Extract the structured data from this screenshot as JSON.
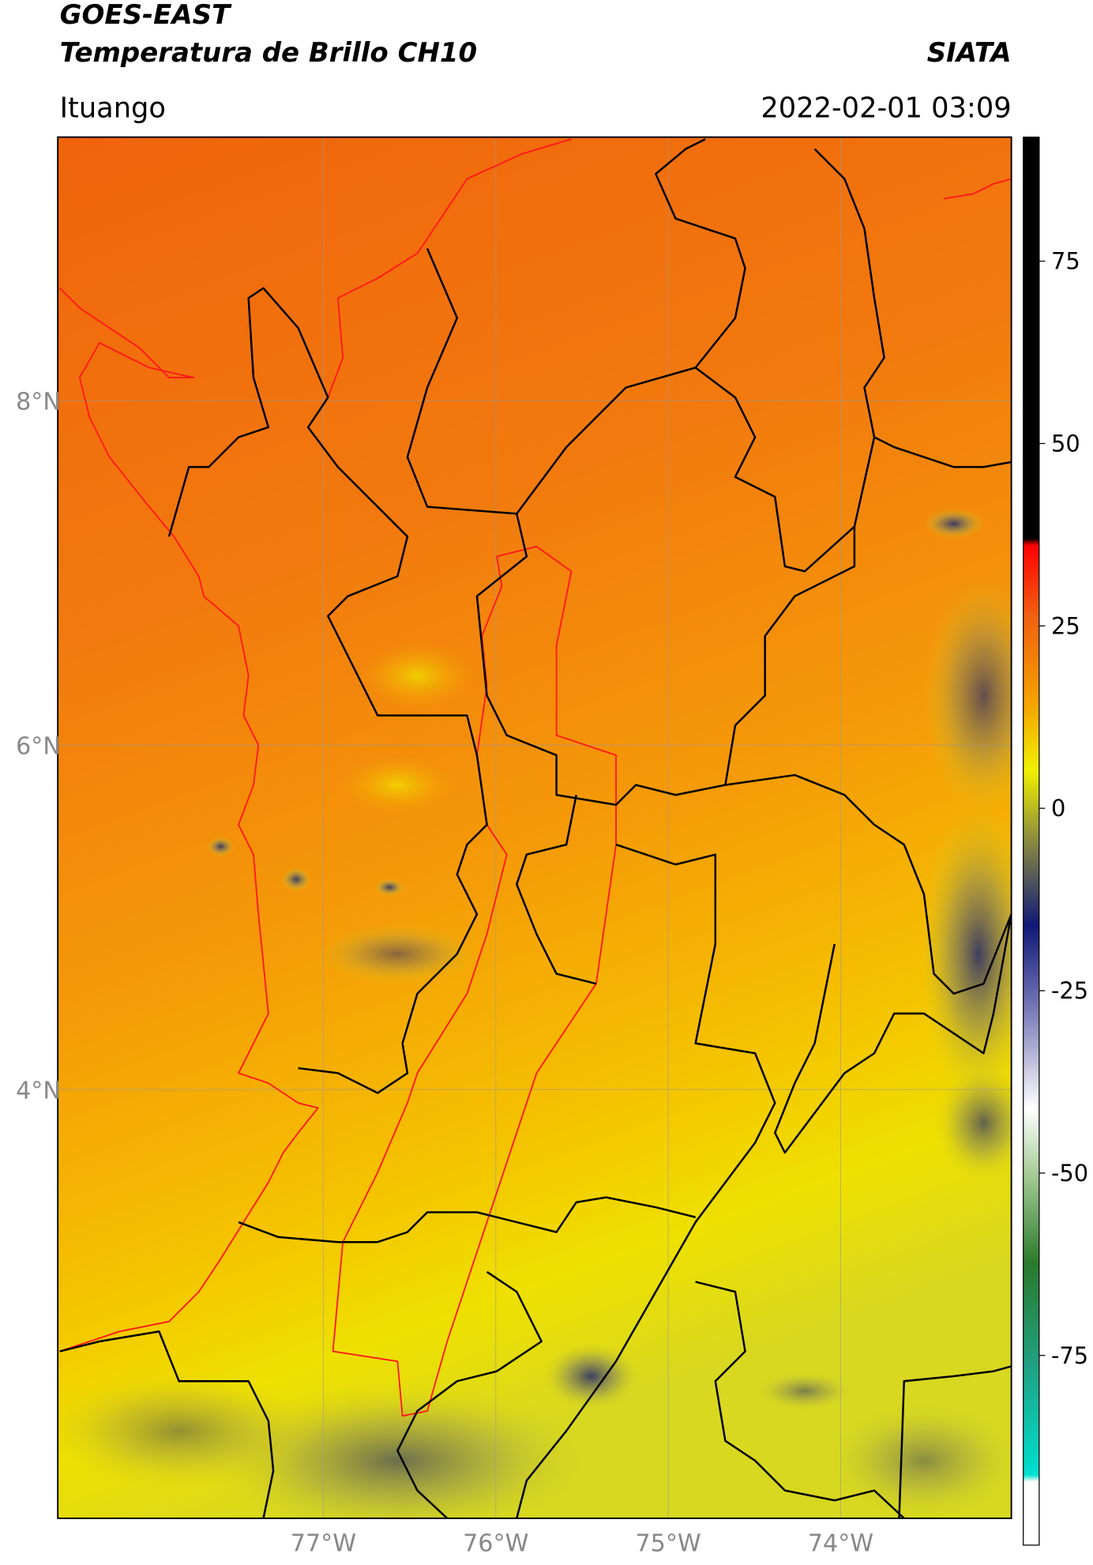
{
  "header": {
    "title": "GOES-EAST",
    "subtitle": "Temperatura de Brillo CH10",
    "source": "SIATA",
    "location": "Ituango",
    "datetime": "2022-02-01 03:09"
  },
  "chart_data": {
    "type": "map",
    "xlim": [
      -78.54,
      -73.01
    ],
    "ylim": [
      1.51,
      9.53
    ],
    "xticks": [
      {
        "value": -77,
        "label": "77°W"
      },
      {
        "value": -76,
        "label": "76°W"
      },
      {
        "value": -75,
        "label": "75°W"
      },
      {
        "value": -74,
        "label": "74°W"
      }
    ],
    "yticks": [
      {
        "value": 4,
        "label": "4°N"
      },
      {
        "value": 6,
        "label": "6°N"
      },
      {
        "value": 8,
        "label": "8°N"
      }
    ],
    "grid": true,
    "colorbar": {
      "lim": [
        -101,
        92
      ],
      "ticks": [
        -75,
        -50,
        -25,
        0,
        25,
        50,
        75
      ]
    }
  }
}
